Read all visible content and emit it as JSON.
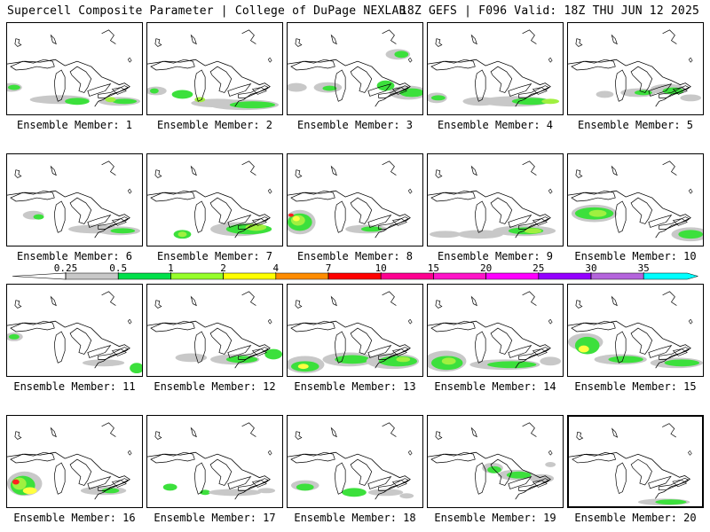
{
  "header": {
    "title_left": "Supercell Composite Parameter | College of DuPage NEXLAB",
    "title_right": "18Z GEFS | F096 Valid: 18Z THU JUN 12 2025"
  },
  "panel_label_prefix": "Ensemble Member: ",
  "members": [
    {
      "label": "Ensemble Member: 1"
    },
    {
      "label": "Ensemble Member: 2"
    },
    {
      "label": "Ensemble Member: 3"
    },
    {
      "label": "Ensemble Member: 4"
    },
    {
      "label": "Ensemble Member: 5"
    },
    {
      "label": "Ensemble Member: 6"
    },
    {
      "label": "Ensemble Member: 7"
    },
    {
      "label": "Ensemble Member: 8"
    },
    {
      "label": "Ensemble Member: 9"
    },
    {
      "label": "Ensemble Member: 10"
    },
    {
      "label": "Ensemble Member: 11"
    },
    {
      "label": "Ensemble Member: 12"
    },
    {
      "label": "Ensemble Member: 13"
    },
    {
      "label": "Ensemble Member: 14"
    },
    {
      "label": "Ensemble Member: 15"
    },
    {
      "label": "Ensemble Member: 16"
    },
    {
      "label": "Ensemble Member: 17"
    },
    {
      "label": "Ensemble Member: 18"
    },
    {
      "label": "Ensemble Member: 19"
    },
    {
      "label": "Ensemble Member: 20"
    }
  ],
  "selected_member": 20,
  "colorbar": {
    "levels": [
      "0.25",
      "0.5",
      "1",
      "2",
      "4",
      "7",
      "10",
      "15",
      "20",
      "25",
      "30",
      "35"
    ],
    "colors": [
      "#c8c8c8",
      "#00e04a",
      "#96ff2a",
      "#ffff00",
      "#ff8c00",
      "#ff0000",
      "#ff0090",
      "#ff14c8",
      "#ff00ff",
      "#9400ff",
      "#b464dc",
      "#00ffff"
    ]
  },
  "colors": {
    "gray": "#c8c8c8",
    "green": "#3ce03c",
    "lime": "#a0f040",
    "yellow": "#ffff40",
    "orange": "#ff9020",
    "red": "#ff2020"
  }
}
